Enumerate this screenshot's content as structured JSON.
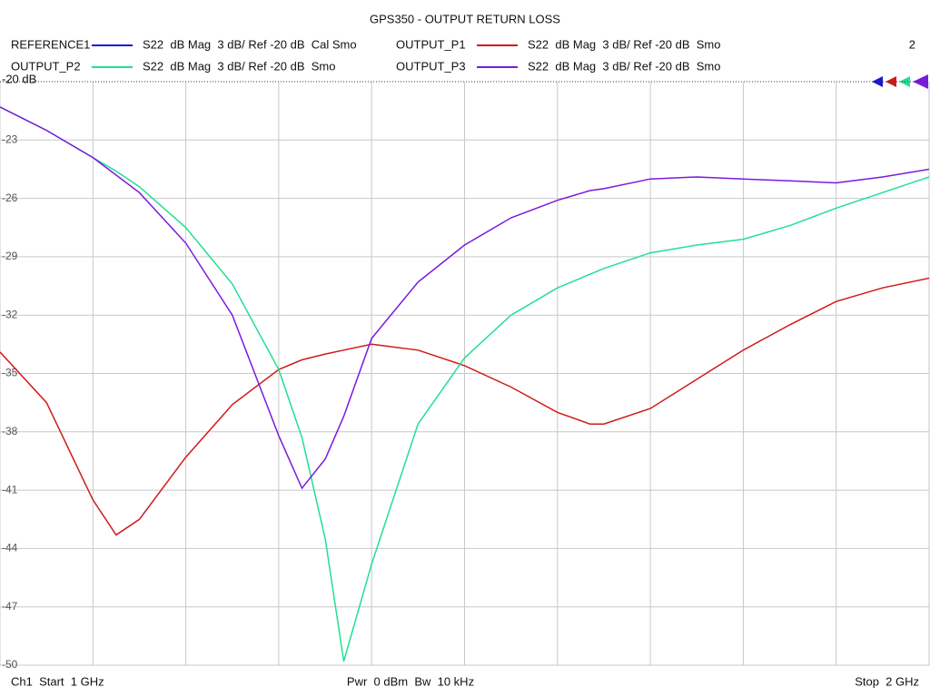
{
  "chart_data": {
    "type": "line",
    "title": "GPS350 - OUTPUT RETURN LOSS",
    "channel_number": "2",
    "footer": [
      "Ch1  Start  1 GHz",
      "Pwr  0 dBm  Bw  10 kHz",
      "Stop  2 GHz"
    ],
    "x": [
      1.0,
      1.05,
      1.1,
      1.125,
      1.15,
      1.2,
      1.25,
      1.3,
      1.325,
      1.35,
      1.37,
      1.4,
      1.45,
      1.5,
      1.55,
      1.6,
      1.635,
      1.65,
      1.7,
      1.75,
      1.8,
      1.85,
      1.9,
      1.95,
      2.0
    ],
    "xlim": [
      1,
      2
    ],
    "xticks": [
      1.0,
      1.1,
      1.2,
      1.3,
      1.4,
      1.5,
      1.6,
      1.7,
      1.8,
      1.9,
      2.0
    ],
    "ylim": [
      -50,
      -20
    ],
    "yticks": [
      {
        "value": -20,
        "label": "-20 dB"
      },
      -23,
      -26,
      -29,
      -32,
      -35,
      -38,
      -41,
      -44,
      -47,
      -50
    ],
    "grid": true,
    "series": [
      {
        "name": "REFERENCE1",
        "description": "S22  dB Mag  3 dB/ Ref -20 dB  Cal Smo",
        "color": "#1a1ad0",
        "values": [
          null,
          null,
          null,
          null,
          null,
          null,
          null,
          null,
          null,
          null,
          null,
          null,
          null,
          null,
          null,
          null,
          null,
          null,
          null,
          null,
          null,
          null,
          null,
          null,
          null
        ]
      },
      {
        "name": "OUTPUT_P1",
        "description": "S22  dB Mag  3 dB/ Ref -20 dB  Smo",
        "color": "#d01a1a",
        "values": [
          -33.9,
          -36.5,
          -41.5,
          -43.3,
          -42.5,
          -39.3,
          -36.6,
          -34.8,
          -34.3,
          -34.0,
          -33.8,
          -33.5,
          -33.8,
          -34.6,
          -35.7,
          -37.0,
          -37.6,
          -37.6,
          -36.8,
          -35.3,
          -33.8,
          -32.5,
          -31.3,
          -30.6,
          -30.1
        ]
      },
      {
        "name": "OUTPUT_P2",
        "description": "S22  dB Mag  3 dB/ Ref -20 dB  Smo",
        "color": "#20e090",
        "values": [
          -21.3,
          -22.5,
          -23.9,
          -24.6,
          -25.4,
          -27.5,
          -30.4,
          -34.8,
          -38.3,
          -43.5,
          -49.8,
          -44.8,
          -37.6,
          -34.2,
          -32.0,
          -30.6,
          -29.9,
          -29.6,
          -28.8,
          -28.4,
          -28.1,
          -27.4,
          -26.5,
          -25.7,
          -24.9
        ]
      },
      {
        "name": "OUTPUT_P3",
        "description": "S22  dB Mag  3 dB/ Ref -20 dB  Smo",
        "color": "#7a1ae0",
        "values": [
          -21.3,
          -22.5,
          -23.9,
          -24.8,
          -25.7,
          -28.3,
          -32.0,
          -38.2,
          -40.9,
          -39.4,
          -37.2,
          -33.2,
          -30.3,
          -28.4,
          -27.0,
          -26.1,
          -25.6,
          -25.5,
          -25.0,
          -24.9,
          -25.0,
          -25.1,
          -25.2,
          -24.9,
          -24.5
        ]
      }
    ]
  }
}
